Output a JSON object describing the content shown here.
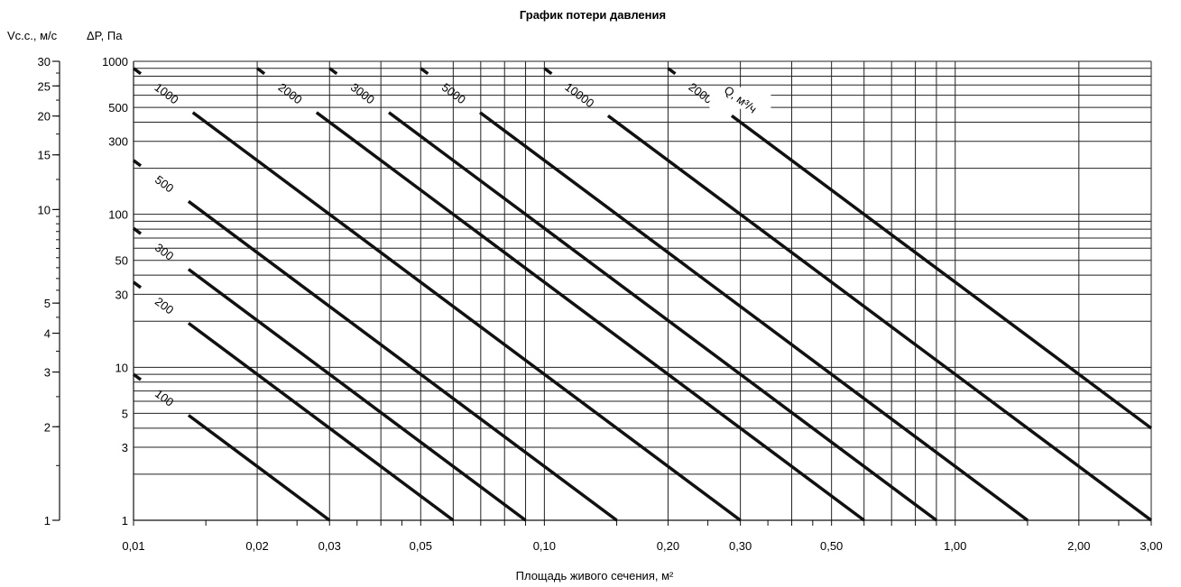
{
  "chart_data": {
    "type": "line",
    "title": "График потери давления",
    "xlabel": "Площадь живого сечения, м²",
    "ylabel": "ΔP, Па",
    "ylabel_left": "Vс.с., м/с",
    "x_scale": "log",
    "y_scale": "log",
    "xlim": [
      0.01,
      3.0
    ],
    "ylim": [
      1,
      1000
    ],
    "grid": true,
    "velocity_axis": {
      "range": [
        1,
        30
      ],
      "ticks": [
        1,
        2,
        3,
        4,
        5,
        10,
        15,
        20,
        25,
        30
      ],
      "tick_labels": [
        "1",
        "2",
        "3",
        "4",
        "5",
        "10",
        "15",
        "20",
        "25",
        "30"
      ]
    },
    "x_ticks": [
      0.01,
      0.02,
      0.03,
      0.05,
      0.1,
      0.2,
      0.3,
      0.5,
      1.0,
      2.0,
      3.0
    ],
    "x_tick_labels": [
      "0,01",
      "0,02",
      "0,03",
      "0,05",
      "0,10",
      "0,20",
      "0,30",
      "0,50",
      "1,00",
      "2,00",
      "3,00"
    ],
    "y_ticks": [
      1,
      3,
      5,
      10,
      30,
      50,
      100,
      300,
      500,
      1000
    ],
    "y_tick_labels": [
      "1",
      "3",
      "5",
      "10",
      "30",
      "50",
      "100",
      "300",
      "500",
      "1000"
    ],
    "series_label_title": "Q, м³/ч",
    "series": [
      {
        "name": "100",
        "x": [
          0.01,
          0.03
        ],
        "y": [
          9.0,
          1.0
        ]
      },
      {
        "name": "200",
        "x": [
          0.01,
          0.06
        ],
        "y": [
          36.0,
          1.0
        ]
      },
      {
        "name": "300",
        "x": [
          0.01,
          0.09
        ],
        "y": [
          81.0,
          1.0
        ]
      },
      {
        "name": "500",
        "x": [
          0.01,
          0.15
        ],
        "y": [
          225.0,
          1.0
        ]
      },
      {
        "name": "1000",
        "x": [
          0.01,
          0.3
        ],
        "y": [
          900.0,
          1.0
        ]
      },
      {
        "name": "2000",
        "x": [
          0.02,
          0.6
        ],
        "y": [
          900.0,
          1.0
        ]
      },
      {
        "name": "3000",
        "x": [
          0.03,
          0.9
        ],
        "y": [
          900.0,
          1.0
        ]
      },
      {
        "name": "5000",
        "x": [
          0.05,
          1.5
        ],
        "y": [
          900.0,
          1.0
        ]
      },
      {
        "name": "10000",
        "x": [
          0.1,
          3.0
        ],
        "y": [
          900.0,
          1.0
        ]
      },
      {
        "name": "20000",
        "x": [
          0.2,
          3.0
        ],
        "y": [
          900.0,
          4.0
        ]
      }
    ]
  }
}
